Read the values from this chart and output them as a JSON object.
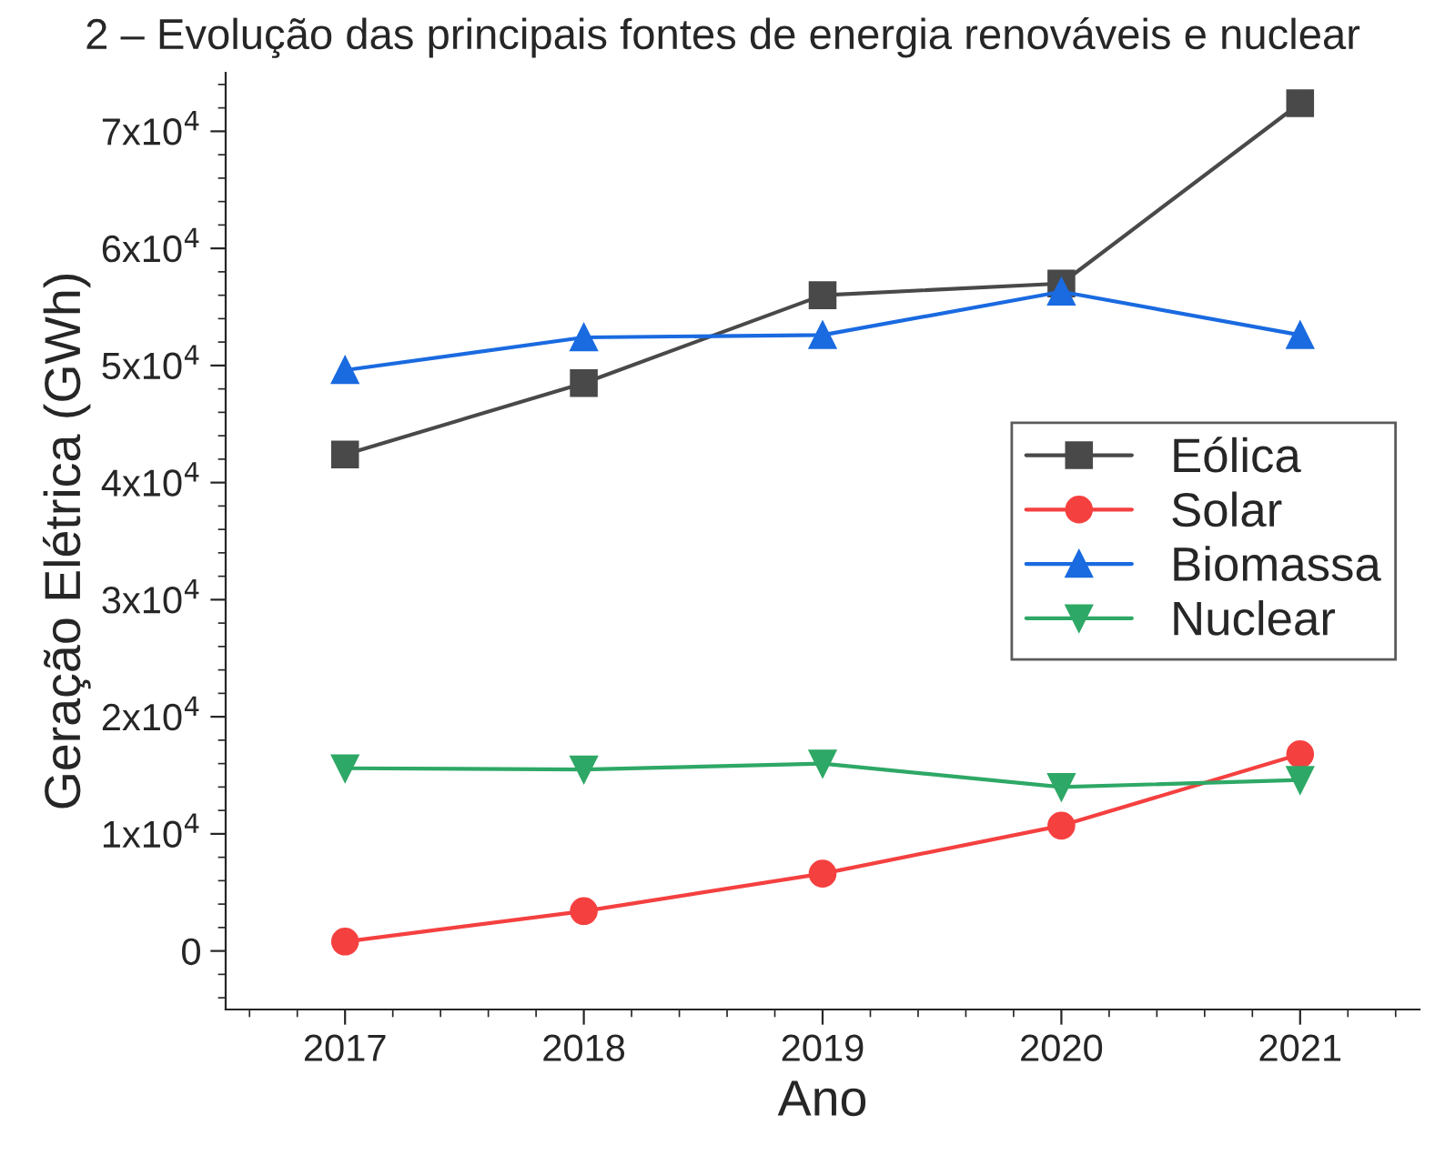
{
  "chart_data": {
    "type": "line",
    "title": "2 – Evolução das principais fontes de energia renováveis e nuclear",
    "xlabel": "Ano",
    "ylabel": "Geração Elétrica (GWh)",
    "x": [
      2017,
      2018,
      2019,
      2020,
      2021
    ],
    "series": [
      {
        "name": "Eólica",
        "color": "#494949",
        "marker": "square",
        "values": [
          42400,
          48500,
          56000,
          57000,
          72400
        ]
      },
      {
        "name": "Solar",
        "color": "#f54040",
        "marker": "circle",
        "values": [
          800,
          3400,
          6600,
          10700,
          16800
        ]
      },
      {
        "name": "Biomassa",
        "color": "#1a6ae0",
        "marker": "triangle",
        "values": [
          49600,
          52400,
          52600,
          56300,
          52600
        ]
      },
      {
        "name": "Nuclear",
        "color": "#2ea866",
        "marker": "triangle_down",
        "values": [
          15600,
          15500,
          16000,
          14000,
          14600
        ]
      }
    ],
    "xlim": [
      2016.5,
      2021.5
    ],
    "xticks": [
      2017,
      2018,
      2019,
      2020,
      2021
    ],
    "ylim": [
      -5000,
      75000
    ],
    "yticks": [
      0,
      {
        "value": 10000,
        "label": "1x10$^{4}$"
      },
      {
        "value": 20000,
        "label": "2x10$^{4}$"
      },
      {
        "value": 30000,
        "label": "3x10$^{4}$"
      },
      {
        "value": 40000,
        "label": "4x10$^{4}$"
      },
      {
        "value": 50000,
        "label": "5x10$^{4}$"
      },
      {
        "value": 60000,
        "label": "6x10$^{4}$"
      },
      {
        "value": 70000,
        "label": "7x10$^{4}$"
      }
    ],
    "legend": "right",
    "grid": false,
    "line_style": "solid"
  }
}
